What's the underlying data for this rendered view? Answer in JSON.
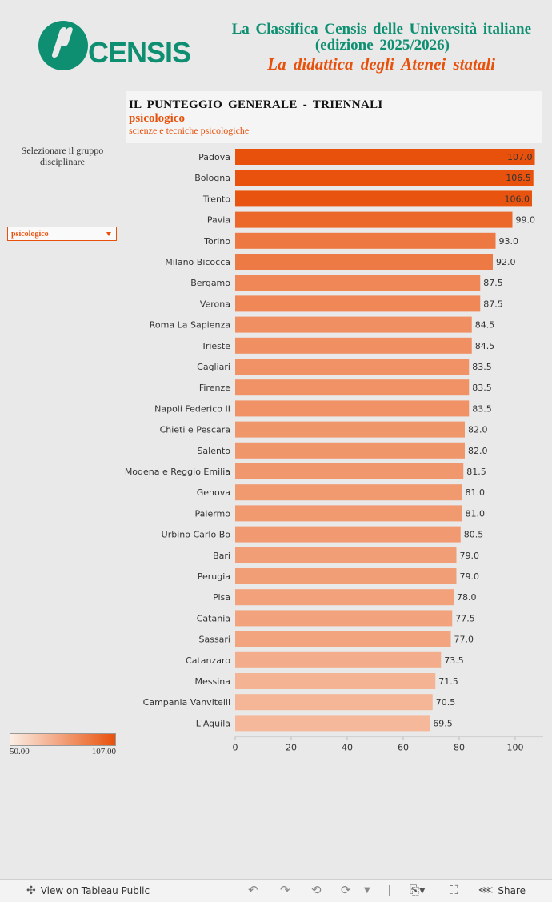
{
  "logo": {
    "text": "CENSIS"
  },
  "header": {
    "line1": "La Classifica Censis delle Università italiane",
    "line2": "(edizione 2025/2026)",
    "line3": "La didattica degli Atenei statali"
  },
  "title_box": {
    "title": "IL PUNTEGGIO GENERALE - TRIENNALI",
    "group": "psicologico",
    "subgroup": "scienze e tecniche psicologiche"
  },
  "filter": {
    "label": "Selezionare il gruppo disciplinare",
    "selected": "psicologico"
  },
  "legend": {
    "min_label": "50.00",
    "max_label": "107.00",
    "color_low": "#fbeee6",
    "color_high": "#e8510b"
  },
  "chart_data": {
    "type": "bar",
    "orientation": "horizontal",
    "categories": [
      "Padova",
      "Bologna",
      "Trento",
      "Pavia",
      "Torino",
      "Milano Bicocca",
      "Bergamo",
      "Verona",
      "Roma La Sapienza",
      "Trieste",
      "Cagliari",
      "Firenze",
      "Napoli Federico II",
      "Chieti e Pescara",
      "Salento",
      "Modena e Reggio Emilia",
      "Genova",
      "Palermo",
      "Urbino Carlo Bo",
      "Bari",
      "Perugia",
      "Pisa",
      "Catania",
      "Sassari",
      "Catanzaro",
      "Messina",
      "Campania Vanvitelli",
      "L'Aquila"
    ],
    "values": [
      107.0,
      106.5,
      106.0,
      99.0,
      93.0,
      92.0,
      87.5,
      87.5,
      84.5,
      84.5,
      83.5,
      83.5,
      83.5,
      82.0,
      82.0,
      81.5,
      81.0,
      81.0,
      80.5,
      79.0,
      79.0,
      78.0,
      77.5,
      77.0,
      73.5,
      71.5,
      70.5,
      69.5
    ],
    "value_labels": [
      "107.0",
      "106.5",
      "106.0",
      "99.0",
      "93.0",
      "92.0",
      "87.5",
      "87.5",
      "84.5",
      "84.5",
      "83.5",
      "83.5",
      "83.5",
      "82.0",
      "82.0",
      "81.5",
      "81.0",
      "81.0",
      "80.5",
      "79.0",
      "79.0",
      "78.0",
      "77.5",
      "77.0",
      "73.5",
      "71.5",
      "70.5",
      "69.5"
    ],
    "x_ticks": [
      "0",
      "20",
      "40",
      "60",
      "80",
      "100"
    ],
    "x_tick_values": [
      0,
      20,
      40,
      60,
      80,
      100
    ],
    "xlim": [
      0,
      110
    ],
    "color_scale": {
      "min": 50,
      "max": 107,
      "low": "#fbeee6",
      "high": "#e8510b"
    },
    "grid": false
  },
  "footer": {
    "view_label": "View on Tableau Public",
    "share_label": "Share"
  }
}
